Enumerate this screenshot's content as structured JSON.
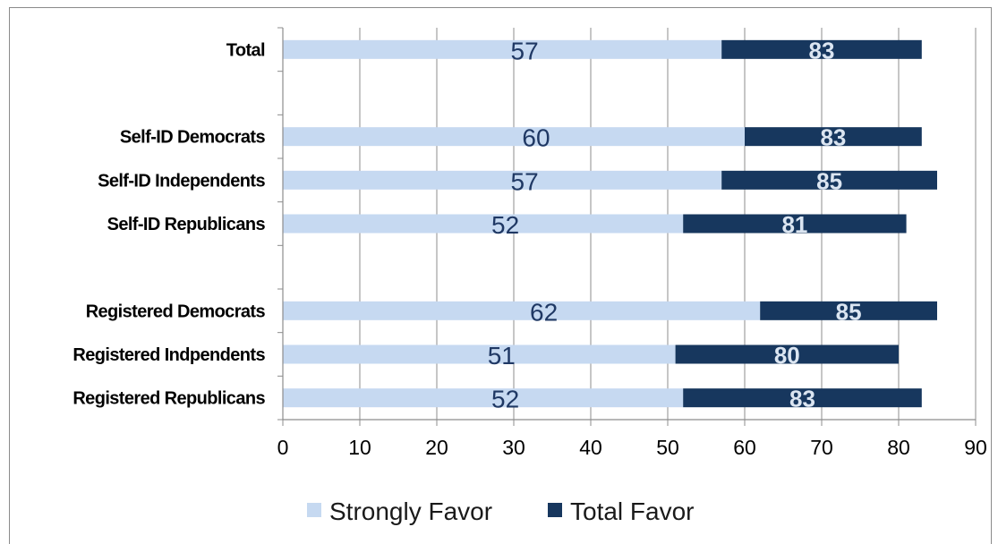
{
  "chart_data": {
    "type": "bar",
    "orientation": "horizontal",
    "categories": [
      "Total",
      "",
      "Self-ID Democrats",
      "Self-ID Independents",
      "Self-ID Republicans",
      "",
      "Registered Democrats",
      "Registered Indpendents",
      "Registered Republicans"
    ],
    "series": [
      {
        "name": "Strongly Favor",
        "values": [
          57,
          null,
          60,
          57,
          52,
          null,
          62,
          51,
          52
        ]
      },
      {
        "name": "Total Favor",
        "values": [
          83,
          null,
          83,
          85,
          81,
          null,
          85,
          80,
          83
        ]
      }
    ],
    "xlim": [
      0,
      90
    ],
    "xticks": [
      0,
      10,
      20,
      30,
      40,
      50,
      60,
      70,
      80,
      90
    ],
    "grid": true,
    "legend": "bottom",
    "colors": {
      "Strongly Favor": "#c6d9f1",
      "Total Favor": "#17375e"
    },
    "xlabel": "",
    "ylabel": "",
    "title": ""
  }
}
